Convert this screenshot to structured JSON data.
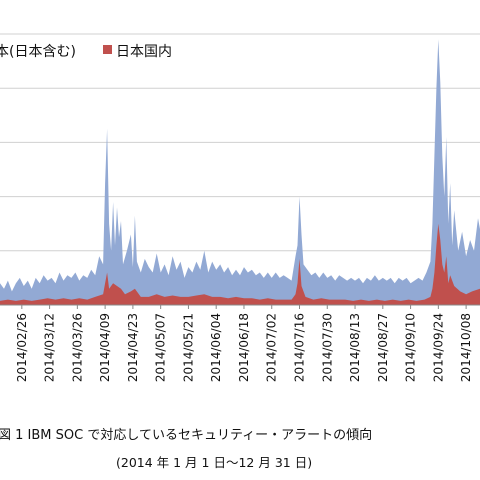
{
  "chart_data": {
    "type": "area",
    "legend": [
      {
        "name": "本(日本含む)",
        "color": "#92A9D4"
      },
      {
        "name": "日本国内",
        "color": "#C0504D"
      }
    ],
    "legend_position": "top-left",
    "grid": true,
    "x_ticks": [
      "2014/02/26",
      "2014/03/12",
      "2014/03/26",
      "2014/04/09",
      "2014/04/23",
      "2014/05/07",
      "2014/05/21",
      "2014/06/04",
      "2014/06/18",
      "2014/07/02",
      "2014/07/16",
      "2014/07/30",
      "2014/08/13",
      "2014/08/27",
      "2014/09/10",
      "2014/09/24",
      "2014/10/08"
    ],
    "x_range": [
      "2014/02/15",
      "2014/10/15"
    ],
    "y_relative_max": 1.0,
    "series": [
      {
        "name": "本(日本含む)",
        "color": "#92A9D4",
        "points": [
          [
            "2014/02/15",
            0.08
          ],
          [
            "2014/02/17",
            0.06
          ],
          [
            "2014/02/19",
            0.09
          ],
          [
            "2014/02/21",
            0.05
          ],
          [
            "2014/02/23",
            0.08
          ],
          [
            "2014/02/25",
            0.1
          ],
          [
            "2014/02/27",
            0.07
          ],
          [
            "2014/03/01",
            0.09
          ],
          [
            "2014/03/03",
            0.06
          ],
          [
            "2014/03/05",
            0.1
          ],
          [
            "2014/03/07",
            0.08
          ],
          [
            "2014/03/09",
            0.11
          ],
          [
            "2014/03/11",
            0.09
          ],
          [
            "2014/03/13",
            0.1
          ],
          [
            "2014/03/15",
            0.08
          ],
          [
            "2014/03/17",
            0.12
          ],
          [
            "2014/03/19",
            0.09
          ],
          [
            "2014/03/21",
            0.11
          ],
          [
            "2014/03/23",
            0.1
          ],
          [
            "2014/03/25",
            0.12
          ],
          [
            "2014/03/27",
            0.09
          ],
          [
            "2014/03/29",
            0.11
          ],
          [
            "2014/03/31",
            0.1
          ],
          [
            "2014/04/02",
            0.13
          ],
          [
            "2014/04/04",
            0.11
          ],
          [
            "2014/04/06",
            0.18
          ],
          [
            "2014/04/08",
            0.15
          ],
          [
            "2014/04/09",
            0.45
          ],
          [
            "2014/04/10",
            0.65
          ],
          [
            "2014/04/11",
            0.3
          ],
          [
            "2014/04/12",
            0.2
          ],
          [
            "2014/04/13",
            0.38
          ],
          [
            "2014/04/14",
            0.22
          ],
          [
            "2014/04/15",
            0.36
          ],
          [
            "2014/04/16",
            0.25
          ],
          [
            "2014/04/17",
            0.31
          ],
          [
            "2014/04/18",
            0.15
          ],
          [
            "2014/04/20",
            0.2
          ],
          [
            "2014/04/22",
            0.26
          ],
          [
            "2014/04/23",
            0.14
          ],
          [
            "2014/04/24",
            0.33
          ],
          [
            "2014/04/25",
            0.16
          ],
          [
            "2014/04/27",
            0.12
          ],
          [
            "2014/04/29",
            0.17
          ],
          [
            "2014/05/01",
            0.14
          ],
          [
            "2014/05/03",
            0.12
          ],
          [
            "2014/05/05",
            0.19
          ],
          [
            "2014/05/07",
            0.12
          ],
          [
            "2014/05/09",
            0.15
          ],
          [
            "2014/05/11",
            0.11
          ],
          [
            "2014/05/13",
            0.18
          ],
          [
            "2014/05/15",
            0.13
          ],
          [
            "2014/05/17",
            0.16
          ],
          [
            "2014/05/19",
            0.1
          ],
          [
            "2014/05/21",
            0.14
          ],
          [
            "2014/05/23",
            0.12
          ],
          [
            "2014/05/25",
            0.16
          ],
          [
            "2014/05/27",
            0.13
          ],
          [
            "2014/05/29",
            0.2
          ],
          [
            "2014/05/31",
            0.12
          ],
          [
            "2014/06/02",
            0.16
          ],
          [
            "2014/06/04",
            0.13
          ],
          [
            "2014/06/06",
            0.15
          ],
          [
            "2014/06/08",
            0.12
          ],
          [
            "2014/06/10",
            0.14
          ],
          [
            "2014/06/12",
            0.11
          ],
          [
            "2014/06/14",
            0.13
          ],
          [
            "2014/06/16",
            0.11
          ],
          [
            "2014/06/18",
            0.14
          ],
          [
            "2014/06/20",
            0.12
          ],
          [
            "2014/06/22",
            0.13
          ],
          [
            "2014/06/24",
            0.11
          ],
          [
            "2014/06/26",
            0.12
          ],
          [
            "2014/06/28",
            0.1
          ],
          [
            "2014/06/30",
            0.12
          ],
          [
            "2014/07/02",
            0.1
          ],
          [
            "2014/07/04",
            0.12
          ],
          [
            "2014/07/06",
            0.1
          ],
          [
            "2014/07/08",
            0.11
          ],
          [
            "2014/07/10",
            0.1
          ],
          [
            "2014/07/12",
            0.09
          ],
          [
            "2014/07/14",
            0.18
          ],
          [
            "2014/07/15",
            0.22
          ],
          [
            "2014/07/16",
            0.4
          ],
          [
            "2014/07/17",
            0.26
          ],
          [
            "2014/07/18",
            0.15
          ],
          [
            "2014/07/20",
            0.13
          ],
          [
            "2014/07/22",
            0.11
          ],
          [
            "2014/07/24",
            0.12
          ],
          [
            "2014/07/26",
            0.1
          ],
          [
            "2014/07/28",
            0.12
          ],
          [
            "2014/07/30",
            0.1
          ],
          [
            "2014/08/01",
            0.11
          ],
          [
            "2014/08/03",
            0.09
          ],
          [
            "2014/08/05",
            0.11
          ],
          [
            "2014/08/07",
            0.1
          ],
          [
            "2014/08/09",
            0.09
          ],
          [
            "2014/08/11",
            0.1
          ],
          [
            "2014/08/13",
            0.09
          ],
          [
            "2014/08/15",
            0.1
          ],
          [
            "2014/08/17",
            0.08
          ],
          [
            "2014/08/19",
            0.1
          ],
          [
            "2014/08/21",
            0.09
          ],
          [
            "2014/08/23",
            0.11
          ],
          [
            "2014/08/25",
            0.09
          ],
          [
            "2014/08/27",
            0.1
          ],
          [
            "2014/08/29",
            0.09
          ],
          [
            "2014/08/31",
            0.1
          ],
          [
            "2014/09/02",
            0.08
          ],
          [
            "2014/09/04",
            0.1
          ],
          [
            "2014/09/06",
            0.09
          ],
          [
            "2014/09/08",
            0.1
          ],
          [
            "2014/09/10",
            0.08
          ],
          [
            "2014/09/12",
            0.09
          ],
          [
            "2014/09/14",
            0.1
          ],
          [
            "2014/09/16",
            0.09
          ],
          [
            "2014/09/18",
            0.12
          ],
          [
            "2014/09/20",
            0.16
          ],
          [
            "2014/09/21",
            0.3
          ],
          [
            "2014/09/22",
            0.55
          ],
          [
            "2014/09/23",
            0.8
          ],
          [
            "2014/09/24",
            0.98
          ],
          [
            "2014/09/25",
            0.82
          ],
          [
            "2014/09/26",
            0.55
          ],
          [
            "2014/09/27",
            0.4
          ],
          [
            "2014/09/28",
            0.62
          ],
          [
            "2014/09/29",
            0.3
          ],
          [
            "2014/09/30",
            0.45
          ],
          [
            "2014/10/01",
            0.22
          ],
          [
            "2014/10/02",
            0.35
          ],
          [
            "2014/10/04",
            0.2
          ],
          [
            "2014/10/06",
            0.27
          ],
          [
            "2014/10/08",
            0.18
          ],
          [
            "2014/10/10",
            0.24
          ],
          [
            "2014/10/12",
            0.2
          ],
          [
            "2014/10/14",
            0.32
          ],
          [
            "2014/10/15",
            0.28
          ]
        ]
      },
      {
        "name": "日本国内",
        "color": "#C0504D",
        "points": [
          [
            "2014/02/15",
            0.015
          ],
          [
            "2014/02/19",
            0.02
          ],
          [
            "2014/02/23",
            0.015
          ],
          [
            "2014/02/27",
            0.02
          ],
          [
            "2014/03/03",
            0.015
          ],
          [
            "2014/03/07",
            0.02
          ],
          [
            "2014/03/11",
            0.025
          ],
          [
            "2014/03/15",
            0.02
          ],
          [
            "2014/03/19",
            0.025
          ],
          [
            "2014/03/23",
            0.02
          ],
          [
            "2014/03/27",
            0.025
          ],
          [
            "2014/03/31",
            0.02
          ],
          [
            "2014/04/04",
            0.03
          ],
          [
            "2014/04/08",
            0.04
          ],
          [
            "2014/04/09",
            0.08
          ],
          [
            "2014/04/10",
            0.12
          ],
          [
            "2014/04/11",
            0.06
          ],
          [
            "2014/04/13",
            0.08
          ],
          [
            "2014/04/15",
            0.07
          ],
          [
            "2014/04/17",
            0.06
          ],
          [
            "2014/04/19",
            0.04
          ],
          [
            "2014/04/22",
            0.05
          ],
          [
            "2014/04/24",
            0.06
          ],
          [
            "2014/04/27",
            0.03
          ],
          [
            "2014/05/01",
            0.03
          ],
          [
            "2014/05/05",
            0.04
          ],
          [
            "2014/05/09",
            0.03
          ],
          [
            "2014/05/13",
            0.035
          ],
          [
            "2014/05/17",
            0.03
          ],
          [
            "2014/05/21",
            0.03
          ],
          [
            "2014/05/25",
            0.035
          ],
          [
            "2014/05/29",
            0.04
          ],
          [
            "2014/06/02",
            0.03
          ],
          [
            "2014/06/06",
            0.03
          ],
          [
            "2014/06/10",
            0.025
          ],
          [
            "2014/06/14",
            0.03
          ],
          [
            "2014/06/18",
            0.025
          ],
          [
            "2014/06/22",
            0.025
          ],
          [
            "2014/06/26",
            0.02
          ],
          [
            "2014/06/30",
            0.025
          ],
          [
            "2014/07/04",
            0.02
          ],
          [
            "2014/07/08",
            0.02
          ],
          [
            "2014/07/12",
            0.02
          ],
          [
            "2014/07/14",
            0.04
          ],
          [
            "2014/07/15",
            0.08
          ],
          [
            "2014/07/16",
            0.17
          ],
          [
            "2014/07/17",
            0.07
          ],
          [
            "2014/07/19",
            0.03
          ],
          [
            "2014/07/23",
            0.02
          ],
          [
            "2014/07/27",
            0.025
          ],
          [
            "2014/07/31",
            0.02
          ],
          [
            "2014/08/04",
            0.02
          ],
          [
            "2014/08/08",
            0.02
          ],
          [
            "2014/08/12",
            0.015
          ],
          [
            "2014/08/16",
            0.02
          ],
          [
            "2014/08/20",
            0.015
          ],
          [
            "2014/08/24",
            0.02
          ],
          [
            "2014/08/28",
            0.015
          ],
          [
            "2014/09/01",
            0.02
          ],
          [
            "2014/09/05",
            0.015
          ],
          [
            "2014/09/09",
            0.02
          ],
          [
            "2014/09/13",
            0.015
          ],
          [
            "2014/09/17",
            0.02
          ],
          [
            "2014/09/20",
            0.03
          ],
          [
            "2014/09/21",
            0.06
          ],
          [
            "2014/09/22",
            0.12
          ],
          [
            "2014/09/23",
            0.22
          ],
          [
            "2014/09/24",
            0.3
          ],
          [
            "2014/09/25",
            0.24
          ],
          [
            "2014/09/26",
            0.15
          ],
          [
            "2014/09/27",
            0.12
          ],
          [
            "2014/09/28",
            0.18
          ],
          [
            "2014/09/29",
            0.08
          ],
          [
            "2014/09/30",
            0.11
          ],
          [
            "2014/10/02",
            0.07
          ],
          [
            "2014/10/05",
            0.05
          ],
          [
            "2014/10/08",
            0.04
          ],
          [
            "2014/10/11",
            0.05
          ],
          [
            "2014/10/15",
            0.06
          ]
        ]
      }
    ]
  },
  "caption": {
    "line1": "図 1 IBM SOC で対応しているセキュリティー・アラートの傾向",
    "line2": "(2014 年 1 月 1 日～12 月 31 日)"
  }
}
